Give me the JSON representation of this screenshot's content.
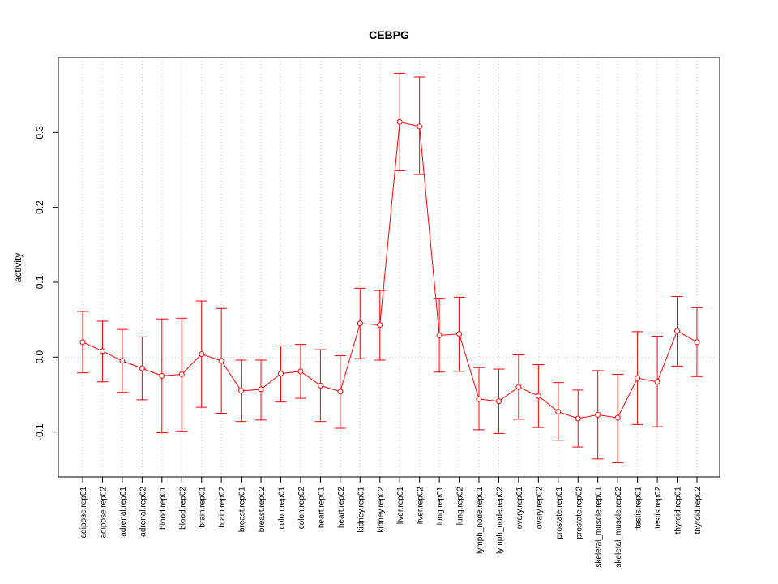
{
  "chart_data": {
    "type": "line",
    "title": "CEBPG",
    "xlabel": "",
    "ylabel": "activity",
    "ylim": [
      -0.16,
      0.4
    ],
    "yticks": [
      -0.1,
      0.0,
      0.1,
      0.2,
      0.3
    ],
    "ytick_labels": [
      "-0.1",
      "0.0",
      "0.1",
      "0.2",
      "0.3"
    ],
    "grid": true,
    "color": "#ff0000",
    "categories": [
      "adipose.rep01",
      "adipose.rep02",
      "adrenal.rep01",
      "adrenal.rep02",
      "blood.rep01",
      "blood.rep02",
      "brain.rep01",
      "brain.rep02",
      "breast.rep01",
      "breast.rep02",
      "colon.rep01",
      "colon.rep02",
      "heart.rep01",
      "heart.rep02",
      "kidney.rep01",
      "kidney.rep02",
      "liver.rep01",
      "liver.rep02",
      "lung.rep01",
      "lung.rep02",
      "lymph_node.rep01",
      "lymph_node.rep02",
      "ovary.rep01",
      "ovary.rep02",
      "prostate.rep01",
      "prostate.rep02",
      "skeletal_muscle.rep01",
      "skeletal_muscle.rep02",
      "testis.rep01",
      "testis.rep02",
      "thyroid.rep01",
      "thyroid.rep02"
    ],
    "values": [
      0.02,
      0.008,
      -0.005,
      -0.015,
      -0.025,
      -0.023,
      0.004,
      -0.005,
      -0.045,
      -0.043,
      -0.022,
      -0.019,
      -0.038,
      -0.046,
      0.045,
      0.043,
      0.314,
      0.308,
      0.029,
      0.031,
      -0.056,
      -0.059,
      -0.04,
      -0.052,
      -0.073,
      -0.082,
      -0.077,
      -0.081,
      -0.028,
      -0.033,
      0.035,
      0.02
    ],
    "error_upper": [
      0.061,
      0.048,
      0.037,
      0.027,
      0.051,
      0.052,
      0.075,
      0.065,
      -0.004,
      -0.004,
      0.015,
      0.017,
      0.01,
      0.002,
      0.092,
      0.089,
      0.379,
      0.374,
      0.078,
      0.08,
      -0.014,
      -0.016,
      0.003,
      -0.01,
      -0.034,
      -0.044,
      -0.018,
      -0.023,
      0.034,
      0.028,
      0.081,
      0.066
    ],
    "error_lower": [
      -0.021,
      -0.033,
      -0.047,
      -0.057,
      -0.101,
      -0.099,
      -0.067,
      -0.075,
      -0.086,
      -0.084,
      -0.06,
      -0.055,
      -0.086,
      -0.095,
      -0.002,
      -0.004,
      0.249,
      0.244,
      -0.02,
      -0.019,
      -0.097,
      -0.102,
      -0.083,
      -0.094,
      -0.111,
      -0.12,
      -0.136,
      -0.141,
      -0.09,
      -0.093,
      -0.012,
      -0.026
    ]
  }
}
